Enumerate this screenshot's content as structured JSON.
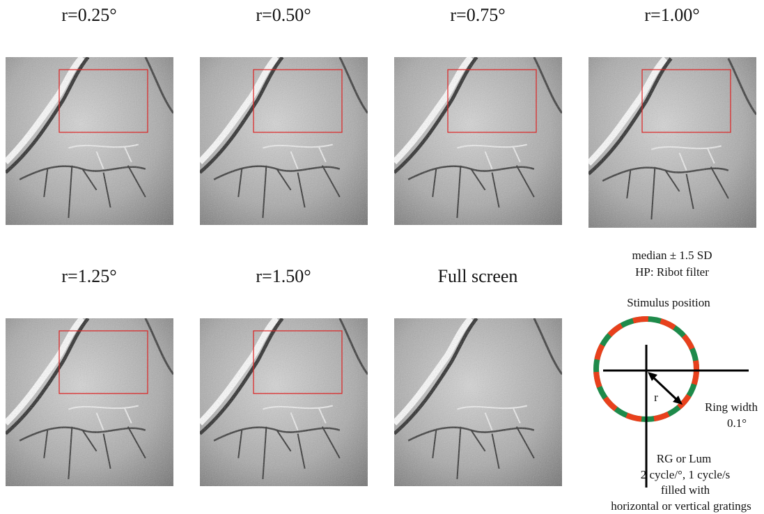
{
  "panels": [
    {
      "label": "r=0.25°"
    },
    {
      "label": "r=0.50°"
    },
    {
      "label": "r=0.75°"
    },
    {
      "label": "r=1.00°"
    },
    {
      "label": "r=1.25°"
    },
    {
      "label": "r=1.50°"
    },
    {
      "label": "Full screen"
    }
  ],
  "scale_note": {
    "line1": "median ± 1.5 SD",
    "line2": "HP: Ribot filter"
  },
  "stimulus": {
    "title": "Stimulus position",
    "radius_label": "r",
    "ring_width_label": "Ring width",
    "ring_width_value": "0.1°",
    "description": [
      "RG or Lum",
      "2 cycle/°, 1 cycle/s",
      "filled with",
      "horizontal or vertical gratings"
    ]
  }
}
